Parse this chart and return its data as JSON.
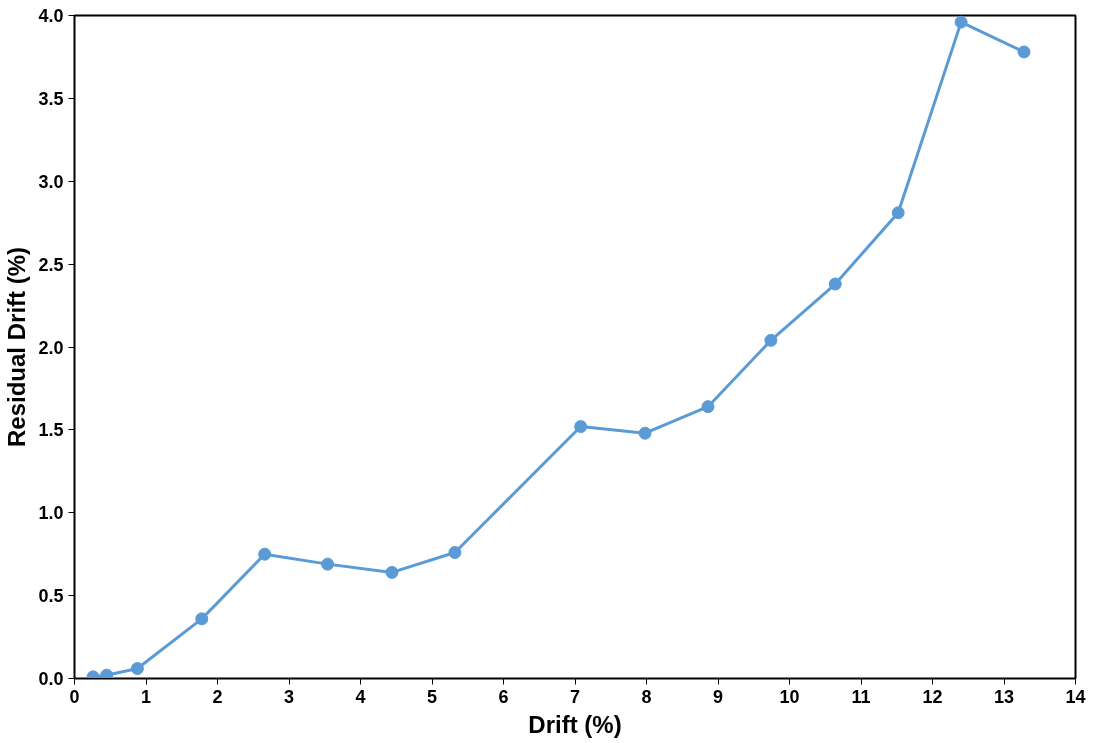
{
  "chart_data": {
    "type": "line",
    "xlabel": "Drift (%)",
    "ylabel": "Residual Drift (%)",
    "x": [
      0.26,
      0.45,
      0.88,
      1.78,
      2.66,
      3.54,
      4.44,
      5.32,
      7.08,
      7.98,
      8.86,
      9.74,
      10.64,
      11.52,
      12.4,
      13.28
    ],
    "series": [
      {
        "color": "#5b9bd5",
        "values": [
          0.01,
          0.02,
          0.06,
          0.36,
          0.75,
          0.69,
          0.64,
          0.76,
          1.52,
          1.48,
          1.64,
          2.04,
          2.38,
          2.81,
          3.96,
          3.78
        ]
      }
    ],
    "xlim": [
      0,
      14
    ],
    "xticks": [
      0,
      1,
      2,
      3,
      4,
      5,
      6,
      7,
      8,
      9,
      10,
      11,
      12,
      13,
      14
    ],
    "ylim": [
      0,
      4
    ],
    "yticks": [
      {
        "value": 0,
        "label": "0.0"
      },
      {
        "value": 0.5,
        "label": "0.5"
      },
      {
        "value": 1,
        "label": "1.0"
      },
      {
        "value": 1.5,
        "label": "1.5"
      },
      {
        "value": 2,
        "label": "2.0"
      },
      {
        "value": 2.5,
        "label": "2.5"
      },
      {
        "value": 3,
        "label": "3.0"
      },
      {
        "value": 3.5,
        "label": "3.5"
      },
      {
        "value": 4,
        "label": "4.0"
      }
    ],
    "grid": false,
    "marker": "circle",
    "line_style": "solid"
  }
}
